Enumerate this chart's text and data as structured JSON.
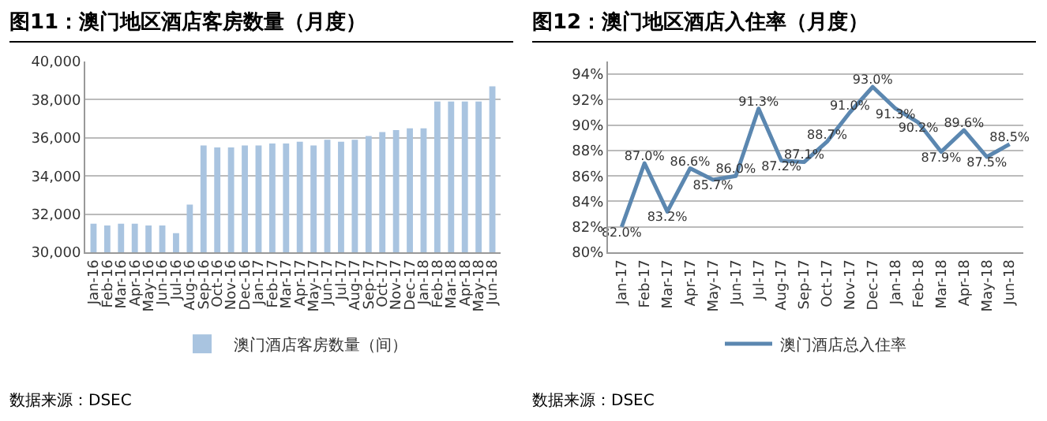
{
  "chart_data": [
    {
      "type": "bar",
      "title": "图11：澳门地区酒店客房数量（月度）",
      "categories": [
        "Jan-16",
        "Feb-16",
        "Mar-16",
        "Apr-16",
        "May-16",
        "Jun-16",
        "Jul-16",
        "Aug-16",
        "Sep-16",
        "Oct-16",
        "Nov-16",
        "Dec-16",
        "Jan-17",
        "Feb-17",
        "Mar-17",
        "Apr-17",
        "May-17",
        "Jun-17",
        "Jul-17",
        "Aug-17",
        "Sep-17",
        "Oct-17",
        "Nov-17",
        "Dec-17",
        "Jan-18",
        "Feb-18",
        "Mar-18",
        "Apr-18",
        "May-18",
        "Jun-18"
      ],
      "series": [
        {
          "name": "澳门酒店客房数量（间）",
          "color": "#a9c4e0",
          "values": [
            31500,
            31400,
            31500,
            31500,
            31400,
            31400,
            31000,
            32500,
            35600,
            35500,
            35500,
            35600,
            35600,
            35700,
            35700,
            35800,
            35600,
            35900,
            35800,
            35900,
            36100,
            36300,
            36400,
            36500,
            36500,
            37900,
            37900,
            37900,
            37900,
            38700
          ]
        }
      ],
      "ylim": [
        30000,
        40000
      ],
      "yticks": [
        {
          "value": 30000,
          "label": "30,000"
        },
        {
          "value": 32000,
          "label": "32,000"
        },
        {
          "value": 34000,
          "label": "34,000"
        },
        {
          "value": 36000,
          "label": "36,000"
        },
        {
          "value": 38000,
          "label": "38,000"
        },
        {
          "value": 40000,
          "label": "40,000"
        }
      ],
      "grid": "y",
      "legend": "bottom",
      "annotations": [
        "数据来源：DSEC"
      ]
    },
    {
      "type": "line",
      "title": "图12：澳门地区酒店入住率（月度）",
      "categories": [
        "Jan-17",
        "Feb-17",
        "Mar-17",
        "Apr-17",
        "May-17",
        "Jun-17",
        "Jul-17",
        "Aug-17",
        "Sep-17",
        "Oct-17",
        "Nov-17",
        "Dec-17",
        "Jan-18",
        "Feb-18",
        "Mar-18",
        "Apr-18",
        "May-18",
        "Jun-18"
      ],
      "series": [
        {
          "name": "澳门酒店总入住率",
          "color": "#5b87b0",
          "values": [
            82.0,
            87.0,
            83.2,
            86.6,
            85.7,
            86.0,
            91.3,
            87.2,
            87.1,
            88.7,
            91.0,
            93.0,
            91.3,
            90.2,
            87.9,
            89.6,
            87.5,
            88.5
          ],
          "value_labels": [
            "82.0%",
            "87.0%",
            "83.2%",
            "86.6%",
            "85.7%",
            "86.0%",
            "91.3%",
            "87.2%",
            "87.1%",
            "88.7%",
            "91.0%",
            "93.0%",
            "91.3%",
            "90.2%",
            "87.9%",
            "89.6%",
            "87.5%",
            "88.5%"
          ]
        }
      ],
      "ylim": [
        80,
        95
      ],
      "yticks": [
        {
          "value": 80,
          "label": "80%"
        },
        {
          "value": 82,
          "label": "82%"
        },
        {
          "value": 84,
          "label": "84%"
        },
        {
          "value": 86,
          "label": "86%"
        },
        {
          "value": 88,
          "label": "88%"
        },
        {
          "value": 90,
          "label": "90%"
        },
        {
          "value": 92,
          "label": "92%"
        },
        {
          "value": 94,
          "label": "94%"
        }
      ],
      "grid": "y",
      "legend": "bottom",
      "marker": "none",
      "line_style": "solid",
      "annotations": [
        "数据来源：DSEC"
      ]
    }
  ]
}
